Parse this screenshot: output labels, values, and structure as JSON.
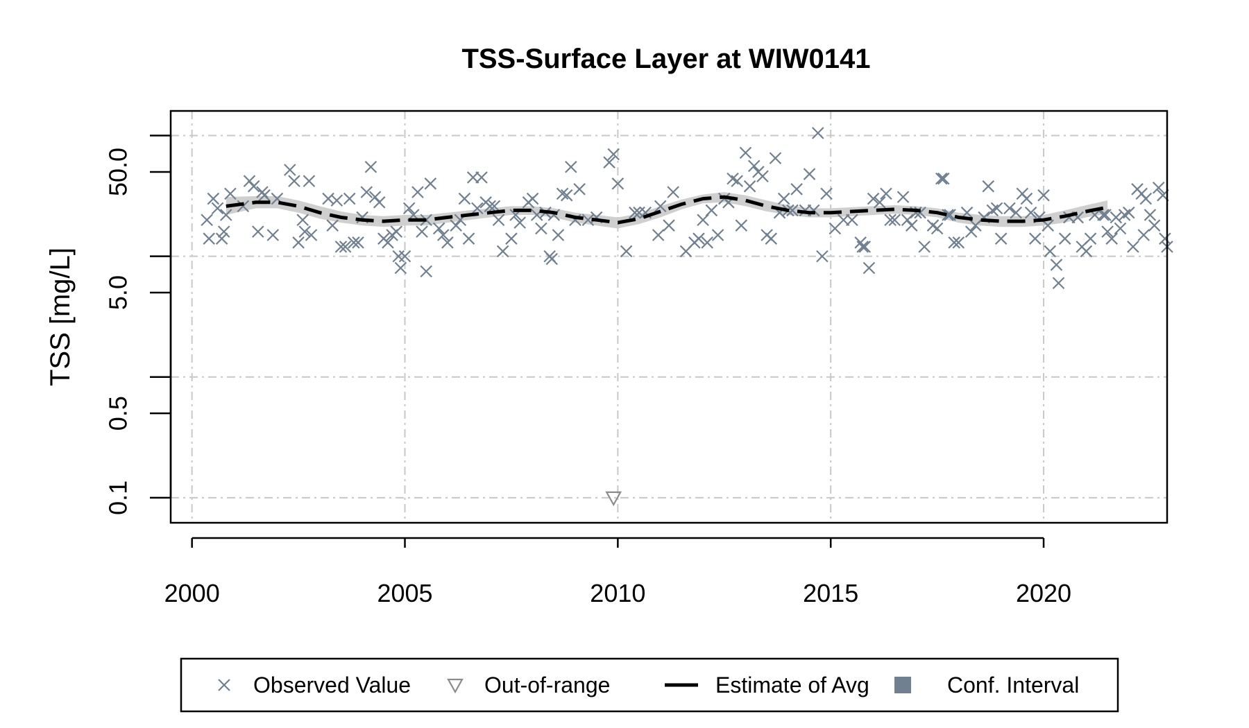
{
  "chart_data": {
    "type": "scatter",
    "title": "TSS-Surface Layer at WIW0141",
    "xlabel": "",
    "ylabel": "TSS [mg/L]",
    "y_scale": "log",
    "xlim": [
      1999.5,
      2022.9
    ],
    "ylim": [
      0.062,
      160
    ],
    "x_ticks": [
      2000,
      2005,
      2010,
      2015,
      2020
    ],
    "x_tick_labels": [
      "2000",
      "2005",
      "2010",
      "2015",
      "2020"
    ],
    "y_ticks": [
      0.1,
      0.5,
      5.0,
      50.0
    ],
    "y_tick_labels": [
      "0.1",
      "0.5",
      "5.0",
      "50.0"
    ],
    "y_minor_ticks": [
      1,
      10,
      100
    ],
    "grid": true,
    "legend_position": "bottom",
    "colors": {
      "observed": "#708090",
      "out_of_range": "#8c8c8c",
      "trend": "#000000",
      "conf_band": "#cfcfcf",
      "conf_legend": "#708090"
    },
    "legend": [
      {
        "label": "Observed Value",
        "symbol": "x-icon"
      },
      {
        "label": "Out-of-range",
        "symbol": "triangle-down-icon"
      },
      {
        "label": "Estimate of Avg",
        "symbol": "dashed-line-icon"
      },
      {
        "label": "Conf. Interval",
        "symbol": "square-icon"
      }
    ],
    "observed": [
      [
        2000.35,
        20
      ],
      [
        2000.4,
        14
      ],
      [
        2000.5,
        30
      ],
      [
        2000.6,
        25
      ],
      [
        2000.7,
        14
      ],
      [
        2000.75,
        16
      ],
      [
        2000.8,
        22
      ],
      [
        2000.9,
        33
      ],
      [
        2001.2,
        26
      ],
      [
        2001.35,
        42
      ],
      [
        2001.45,
        38
      ],
      [
        2001.55,
        16
      ],
      [
        2001.65,
        34
      ],
      [
        2001.7,
        32
      ],
      [
        2001.9,
        15
      ],
      [
        2002.0,
        30
      ],
      [
        2002.3,
        52
      ],
      [
        2002.4,
        42
      ],
      [
        2002.5,
        13
      ],
      [
        2002.6,
        20
      ],
      [
        2002.65,
        16
      ],
      [
        2002.75,
        42
      ],
      [
        2002.8,
        15
      ],
      [
        2003.2,
        30
      ],
      [
        2003.3,
        18
      ],
      [
        2003.4,
        29
      ],
      [
        2003.5,
        12
      ],
      [
        2003.6,
        12
      ],
      [
        2003.7,
        30
      ],
      [
        2003.8,
        13
      ],
      [
        2003.9,
        13
      ],
      [
        2004.0,
        21
      ],
      [
        2004.1,
        34
      ],
      [
        2004.2,
        55
      ],
      [
        2004.3,
        31
      ],
      [
        2004.4,
        28
      ],
      [
        2004.5,
        14
      ],
      [
        2004.6,
        13
      ],
      [
        2004.7,
        15
      ],
      [
        2004.8,
        16
      ],
      [
        2004.85,
        10
      ],
      [
        2004.9,
        8
      ],
      [
        2005.0,
        10
      ],
      [
        2005.1,
        25
      ],
      [
        2005.2,
        22
      ],
      [
        2005.3,
        34
      ],
      [
        2005.4,
        16
      ],
      [
        2005.5,
        20
      ],
      [
        2005.5,
        7.5
      ],
      [
        2005.6,
        40
      ],
      [
        2005.8,
        17
      ],
      [
        2005.9,
        15
      ],
      [
        2006.0,
        13
      ],
      [
        2006.2,
        18
      ],
      [
        2006.3,
        20
      ],
      [
        2006.4,
        30
      ],
      [
        2006.5,
        14
      ],
      [
        2006.6,
        45
      ],
      [
        2006.7,
        25
      ],
      [
        2006.8,
        45
      ],
      [
        2006.9,
        28
      ],
      [
        2007.0,
        26
      ],
      [
        2007.1,
        26
      ],
      [
        2007.2,
        20
      ],
      [
        2007.3,
        11
      ],
      [
        2007.5,
        14
      ],
      [
        2007.6,
        22
      ],
      [
        2007.7,
        19
      ],
      [
        2007.9,
        28
      ],
      [
        2008.0,
        30
      ],
      [
        2008.1,
        22
      ],
      [
        2008.2,
        17
      ],
      [
        2008.3,
        23
      ],
      [
        2008.4,
        10
      ],
      [
        2008.45,
        9.5
      ],
      [
        2008.5,
        22
      ],
      [
        2008.6,
        15
      ],
      [
        2008.7,
        33
      ],
      [
        2008.8,
        32
      ],
      [
        2008.9,
        55
      ],
      [
        2009.0,
        20
      ],
      [
        2009.1,
        36
      ],
      [
        2009.3,
        20
      ],
      [
        2009.5,
        21
      ],
      [
        2009.8,
        60
      ],
      [
        2009.9,
        70
      ],
      [
        2010.0,
        40
      ],
      [
        2010.2,
        11
      ],
      [
        2010.4,
        23
      ],
      [
        2010.5,
        23
      ],
      [
        2010.65,
        23
      ],
      [
        2010.95,
        15
      ],
      [
        2011.0,
        26
      ],
      [
        2011.2,
        18
      ],
      [
        2011.3,
        34
      ],
      [
        2011.6,
        11
      ],
      [
        2011.8,
        13
      ],
      [
        2011.9,
        14
      ],
      [
        2012.0,
        20
      ],
      [
        2012.1,
        13
      ],
      [
        2012.2,
        24
      ],
      [
        2012.35,
        15
      ],
      [
        2012.5,
        30
      ],
      [
        2012.6,
        28
      ],
      [
        2012.7,
        44
      ],
      [
        2012.8,
        42
      ],
      [
        2012.9,
        18
      ],
      [
        2013.0,
        72
      ],
      [
        2013.1,
        38
      ],
      [
        2013.2,
        56
      ],
      [
        2013.3,
        50
      ],
      [
        2013.4,
        46
      ],
      [
        2013.5,
        15
      ],
      [
        2013.6,
        14
      ],
      [
        2013.7,
        65
      ],
      [
        2013.8,
        23
      ],
      [
        2013.9,
        30
      ],
      [
        2014.0,
        24
      ],
      [
        2014.1,
        24
      ],
      [
        2014.2,
        36
      ],
      [
        2014.4,
        24
      ],
      [
        2014.5,
        48
      ],
      [
        2014.6,
        24
      ],
      [
        2014.7,
        105
      ],
      [
        2014.8,
        10
      ],
      [
        2014.9,
        33
      ],
      [
        2015.1,
        17
      ],
      [
        2015.3,
        20
      ],
      [
        2015.5,
        20
      ],
      [
        2015.7,
        13
      ],
      [
        2015.75,
        12
      ],
      [
        2015.8,
        12
      ],
      [
        2015.9,
        8
      ],
      [
        2016.0,
        30
      ],
      [
        2016.15,
        28
      ],
      [
        2016.3,
        33
      ],
      [
        2016.4,
        20
      ],
      [
        2016.5,
        20
      ],
      [
        2016.7,
        31
      ],
      [
        2016.8,
        20
      ],
      [
        2016.9,
        18
      ],
      [
        2017.0,
        23
      ],
      [
        2017.1,
        23
      ],
      [
        2017.2,
        12
      ],
      [
        2017.4,
        18
      ],
      [
        2017.5,
        17
      ],
      [
        2017.6,
        44
      ],
      [
        2017.65,
        44
      ],
      [
        2017.75,
        22
      ],
      [
        2017.8,
        22
      ],
      [
        2017.9,
        13
      ],
      [
        2018.0,
        13
      ],
      [
        2018.2,
        23
      ],
      [
        2018.3,
        16
      ],
      [
        2018.4,
        18
      ],
      [
        2018.6,
        21
      ],
      [
        2018.7,
        38
      ],
      [
        2018.8,
        24
      ],
      [
        2018.9,
        25
      ],
      [
        2019.0,
        14
      ],
      [
        2019.2,
        25
      ],
      [
        2019.35,
        23
      ],
      [
        2019.5,
        33
      ],
      [
        2019.6,
        30
      ],
      [
        2019.7,
        23
      ],
      [
        2019.8,
        14
      ],
      [
        2019.9,
        21
      ],
      [
        2020.0,
        32
      ],
      [
        2020.1,
        18
      ],
      [
        2020.15,
        11
      ],
      [
        2020.3,
        8.5
      ],
      [
        2020.35,
        6
      ],
      [
        2020.5,
        14
      ],
      [
        2020.6,
        21
      ],
      [
        2020.8,
        21
      ],
      [
        2020.9,
        12
      ],
      [
        2021.0,
        11
      ],
      [
        2021.1,
        14
      ],
      [
        2021.2,
        22
      ],
      [
        2021.4,
        22
      ],
      [
        2021.45,
        22
      ],
      [
        2021.5,
        16
      ],
      [
        2021.6,
        14
      ],
      [
        2021.7,
        21
      ],
      [
        2021.8,
        17
      ],
      [
        2021.9,
        22
      ],
      [
        2022.0,
        23
      ],
      [
        2022.1,
        12
      ],
      [
        2022.2,
        36
      ],
      [
        2022.3,
        33
      ],
      [
        2022.35,
        15
      ],
      [
        2022.4,
        30
      ],
      [
        2022.5,
        22
      ],
      [
        2022.6,
        18
      ],
      [
        2022.7,
        37
      ],
      [
        2022.8,
        32
      ],
      [
        2022.85,
        14
      ],
      [
        2022.9,
        12
      ]
    ],
    "out_of_range": [
      [
        2009.9,
        0.1
      ]
    ],
    "estimate_of_avg": {
      "x": [
        2000.8,
        2001.5,
        2002.0,
        2002.5,
        2003.0,
        2003.5,
        2004.0,
        2004.5,
        2005.0,
        2005.5,
        2006.0,
        2006.5,
        2007.0,
        2007.5,
        2008.0,
        2008.5,
        2009.0,
        2009.5,
        2010.0,
        2010.5,
        2011.0,
        2011.5,
        2012.0,
        2012.5,
        2013.0,
        2013.5,
        2014.0,
        2014.5,
        2015.0,
        2015.5,
        2016.0,
        2016.5,
        2017.0,
        2017.5,
        2018.0,
        2018.5,
        2019.0,
        2019.5,
        2020.0,
        2020.5,
        2021.0,
        2021.5
      ],
      "y": [
        26,
        28,
        28,
        26,
        23,
        21,
        20,
        19.5,
        20,
        20,
        21,
        22,
        23,
        24,
        24,
        23,
        21,
        20,
        19,
        20.5,
        23.5,
        27,
        30,
        31,
        29,
        26,
        24,
        23,
        23,
        23.5,
        24,
        24.5,
        24,
        23,
        21,
        20,
        19.5,
        19.5,
        20,
        21.5,
        23.5,
        25.5
      ]
    },
    "conf_interval": {
      "lower": [
        22,
        25,
        25,
        23,
        20.5,
        19,
        18,
        17.5,
        18,
        18,
        19,
        20,
        21,
        22,
        22,
        21,
        19,
        18,
        17,
        18.5,
        21,
        24.5,
        27.5,
        28,
        26,
        23.5,
        22,
        21,
        21,
        21.5,
        22,
        22.5,
        22,
        21,
        19,
        18,
        17.5,
        17.5,
        18,
        19,
        21,
        22.5
      ],
      "upper": [
        31,
        31.5,
        31.5,
        29,
        26,
        23.5,
        22,
        21.5,
        22,
        22,
        23,
        24,
        25,
        26,
        26,
        25,
        23,
        22,
        21,
        22.5,
        26,
        29.5,
        32.5,
        34,
        32,
        29,
        26.5,
        25,
        25,
        25.5,
        26,
        26.5,
        26,
        25,
        23,
        22,
        21.5,
        21.5,
        22,
        24,
        26.5,
        29
      ]
    }
  }
}
